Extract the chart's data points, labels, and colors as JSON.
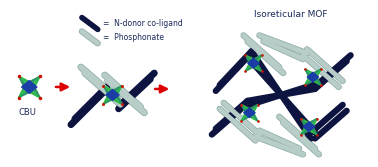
{
  "bg_color": "#ffffff",
  "cbu_label": "CBU",
  "phosphonate_label": "Phosphonate",
  "ndonor_label": "N-donor co-ligand",
  "mof_label": "Isoreticular MOF",
  "arrow_color": "#dd0000",
  "ndonor_color": "#0d1440",
  "phosphonate_light": "#b8ccc8",
  "phosphonate_edge": "#8aaba6",
  "green_color": "#2db84a",
  "blue_color": "#1a3aaa",
  "teal_color": "#2a8870",
  "red_dot_color": "#cc1100",
  "text_color": "#1a2a5a"
}
